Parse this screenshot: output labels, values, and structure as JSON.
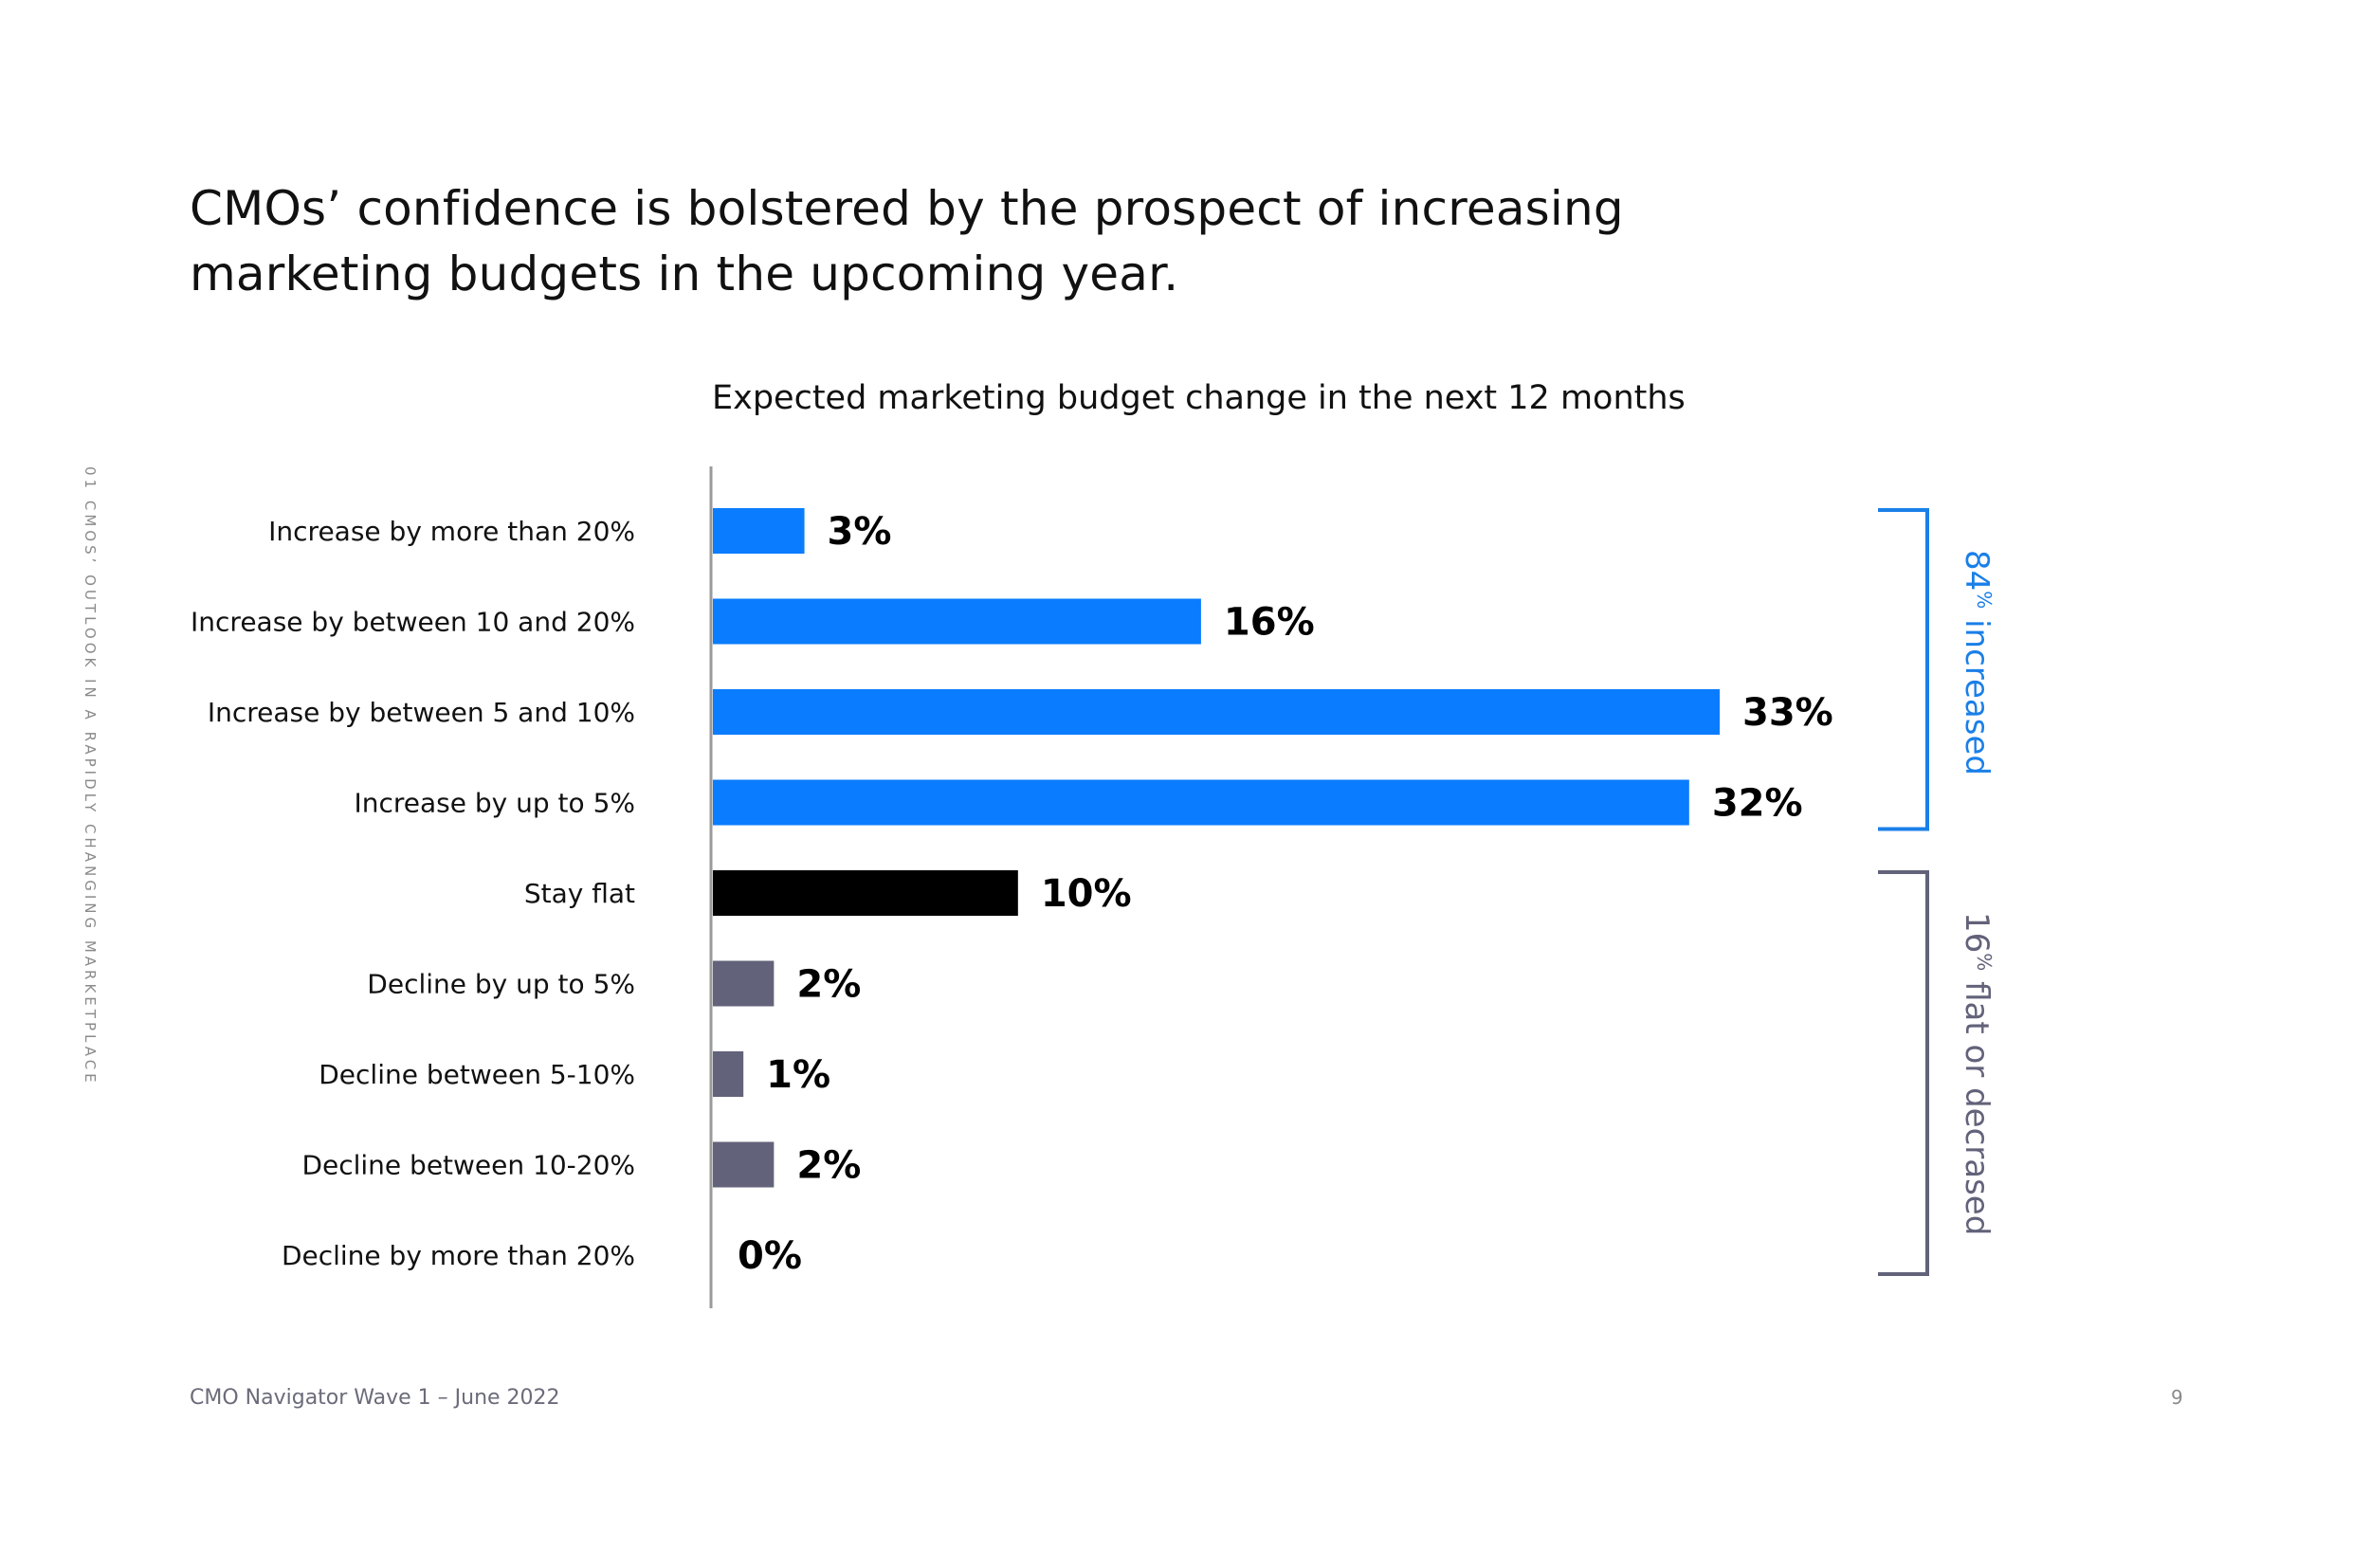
{
  "page": {
    "title": "CMOs’ confidence is bolstered by the prospect of increasing marketing budgets in the upcoming year.",
    "side_label": "01 CMOS’ OUTLOOK IN A RAPIDLY CHANGING MARKETPLACE",
    "footer": "CMO Navigator Wave 1 – June 2022",
    "page_number": "9"
  },
  "chart_data": {
    "type": "bar",
    "orientation": "horizontal",
    "title": "Expected marketing budget change in the next 12 months",
    "xlabel": "",
    "ylabel": "",
    "xlim": [
      0,
      33
    ],
    "grid": false,
    "categories": [
      "Increase by more than 20%",
      "Increase by between 10 and 20%",
      "Increase by between 5 and 10%",
      "Increase by up to 5%",
      "Stay flat",
      "Decline by up to 5%",
      "Decline between 5-10%",
      "Decline between 10-20%",
      "Decline by more than 20%"
    ],
    "values": [
      3,
      16,
      33,
      32,
      10,
      2,
      1,
      2,
      0
    ],
    "value_labels": [
      "3%",
      "16%",
      "33%",
      "32%",
      "10%",
      "2%",
      "1%",
      "2%",
      "0%"
    ],
    "bar_colors": [
      "#0a7cff",
      "#0a7cff",
      "#0a7cff",
      "#0a7cff",
      "#000000",
      "#62627a",
      "#62627a",
      "#62627a",
      "#62627a"
    ],
    "brackets": [
      {
        "value": "84",
        "unit": "%",
        "text": " increased",
        "color": "#1a7fe8",
        "from_index": 0,
        "to_index": 3
      },
      {
        "value": "16",
        "unit": "%",
        "text": " flat or decrased",
        "color": "#62627a",
        "from_index": 4,
        "to_index": 8
      }
    ]
  }
}
